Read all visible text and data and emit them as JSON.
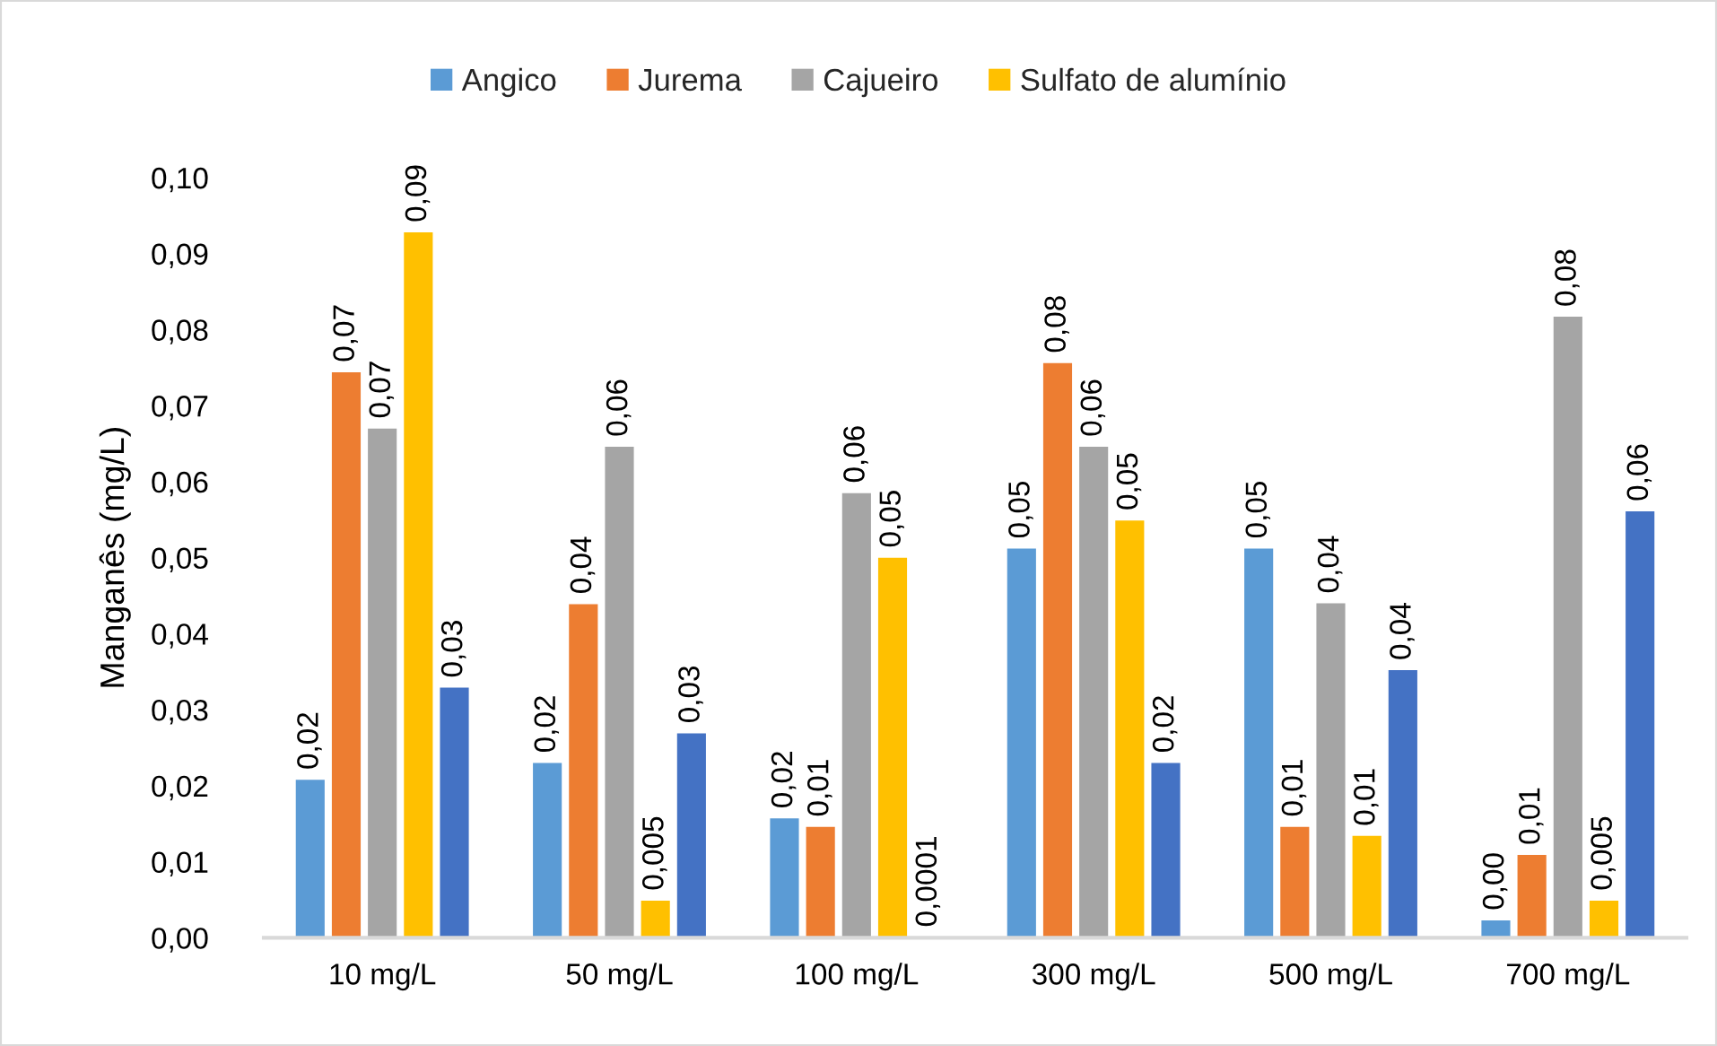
{
  "chart_data": {
    "type": "bar",
    "ylabel": "Manganês (mg/L)",
    "categories": [
      "10 mg/L",
      "50 mg/L",
      "100 mg/L",
      "300 mg/L",
      "500 mg/L",
      "700 mg/L"
    ],
    "series": [
      {
        "name": "Angico",
        "color": "#5b9bd5",
        "values": [
          0.0208,
          0.023,
          0.0157,
          0.0512,
          0.0512,
          0.0023
        ],
        "value_labels": [
          "0,02",
          "0,02",
          "0,02",
          "0,05",
          "0,05",
          "0,00"
        ]
      },
      {
        "name": "Jurema",
        "color": "#ed7d31",
        "values": [
          0.0744,
          0.0439,
          0.0146,
          0.0756,
          0.0146,
          0.0109
        ],
        "value_labels": [
          "0,07",
          "0,04",
          "0,01",
          "0,08",
          "0,01",
          "0,01"
        ]
      },
      {
        "name": "Cajueiro",
        "color": "#a5a5a5",
        "values": [
          0.067,
          0.0646,
          0.0585,
          0.0646,
          0.044,
          0.0817
        ],
        "value_labels": [
          "0,07",
          "0,06",
          "0,06",
          "0,06",
          "0,04",
          "0,08"
        ]
      },
      {
        "name": "Sulfato de alumínio",
        "color": "#ffc000",
        "values": [
          0.0928,
          0.0049,
          0.05,
          0.0549,
          0.0134,
          0.0049
        ],
        "value_labels": [
          "0,09",
          "0,005",
          "0,05",
          "0,05",
          "0,01",
          "0,005"
        ]
      },
      {
        "color": "#4472c4",
        "values": [
          0.0329,
          0.0269,
          0.0001,
          0.023,
          0.0352,
          0.0561
        ],
        "value_labels": [
          "0,03",
          "0,03",
          "0,0001",
          "0,02",
          "0,04",
          "0,06"
        ]
      }
    ],
    "ylim": [
      0,
      0.1
    ],
    "yticks": [
      {
        "value": 0,
        "label": "0,00"
      },
      {
        "value": 0.01,
        "label": "0,01"
      },
      {
        "value": 0.02,
        "label": "0,02"
      },
      {
        "value": 0.03,
        "label": "0,03"
      },
      {
        "value": 0.04,
        "label": "0,04"
      },
      {
        "value": 0.05,
        "label": "0,05"
      },
      {
        "value": 0.06,
        "label": "0,06"
      },
      {
        "value": 0.07,
        "label": "0,07"
      },
      {
        "value": 0.08,
        "label": "0,08"
      },
      {
        "value": 0.09,
        "label": "0,09"
      },
      {
        "value": 0.1,
        "label": "0,10"
      }
    ],
    "legend": "top",
    "grid": false
  }
}
